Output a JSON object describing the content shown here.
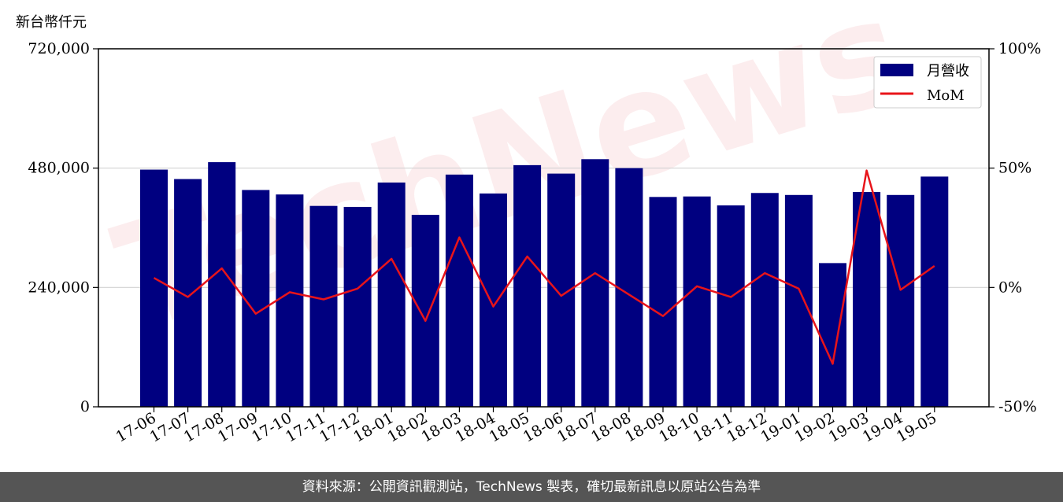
{
  "footer_text": "資料來源：公開資訊觀測站，TechNews 製表，確切最新訊息以原站公告為準",
  "watermark": "TechNews",
  "colors": {
    "bar": "#000080",
    "line": "#e8141a",
    "grid": "#d3d3d3"
  },
  "chart_data": {
    "type": "bar",
    "unit_label": "新台幣仟元",
    "categories": [
      "17-06",
      "17-07",
      "17-08",
      "17-09",
      "17-10",
      "17-11",
      "17-12",
      "18-01",
      "18-02",
      "18-03",
      "18-04",
      "18-05",
      "18-06",
      "18-07",
      "18-08",
      "18-09",
      "18-10",
      "18-11",
      "18-12",
      "19-01",
      "19-02",
      "19-03",
      "19-04",
      "19-05"
    ],
    "series": [
      {
        "name": "月營收",
        "axis": "left",
        "type": "bar",
        "values": [
          477000,
          458000,
          492000,
          436000,
          427000,
          404000,
          402000,
          451000,
          386000,
          467000,
          429000,
          486000,
          469000,
          498000,
          480000,
          422000,
          423000,
          405000,
          430000,
          426000,
          289000,
          432000,
          426000,
          463000
        ]
      },
      {
        "name": "MoM",
        "axis": "right",
        "type": "line",
        "values": [
          4,
          -4,
          8,
          -11,
          -2,
          -5,
          -0.5,
          12,
          -14,
          21,
          -8,
          13,
          -3.5,
          6,
          -3,
          -12,
          0.5,
          -4,
          6,
          -0.5,
          -32,
          49,
          -1,
          9
        ]
      }
    ],
    "y_left": {
      "ticks": [
        0,
        240000,
        480000,
        720000
      ],
      "tick_labels": [
        "0",
        "240,000",
        "480,000",
        "720,000"
      ],
      "range": [
        0,
        720000
      ]
    },
    "y_right": {
      "ticks": [
        -50,
        0,
        50,
        100
      ],
      "tick_labels": [
        "-50%",
        "0%",
        "50%",
        "100%"
      ],
      "range": [
        -50,
        100
      ]
    },
    "grid": "horizontal",
    "legend_position": "top-right"
  }
}
